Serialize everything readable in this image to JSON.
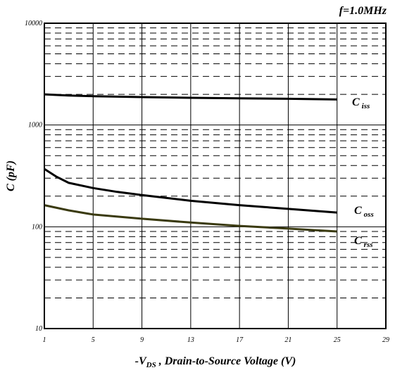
{
  "chart_data": {
    "type": "line",
    "annotation": "f=1.0MHz",
    "xlabel": {
      "prefix": "-V",
      "sub": "DS",
      "suffix": " , Drain-to-Source Voltage (V)"
    },
    "ylabel": "C (pF)",
    "xlim": [
      1,
      29
    ],
    "ylim": [
      10,
      10000
    ],
    "yscale": "log",
    "xticks": [
      1,
      5,
      9,
      13,
      17,
      21,
      25,
      29
    ],
    "yticks": [
      10,
      100,
      1000,
      10000
    ],
    "ytick_labels": [
      "10",
      "100",
      "1000",
      "10000"
    ],
    "grid": true,
    "series": [
      {
        "name": "C",
        "sub": "iss",
        "color": "#000000",
        "x": [
          1,
          3,
          5,
          9,
          13,
          17,
          21,
          25
        ],
        "y": [
          2000,
          1950,
          1920,
          1880,
          1850,
          1830,
          1810,
          1780
        ]
      },
      {
        "name": "C",
        "sub": "oss",
        "color": "#000000",
        "x": [
          1,
          2,
          3,
          5,
          7,
          9,
          13,
          17,
          21,
          25
        ],
        "y": [
          370,
          310,
          270,
          240,
          220,
          205,
          180,
          163,
          150,
          138
        ]
      },
      {
        "name": "C",
        "sub": "rss",
        "color": "#3a3a10",
        "x": [
          1,
          3,
          5,
          9,
          13,
          17,
          21,
          25
        ],
        "y": [
          163,
          145,
          132,
          120,
          110,
          102,
          96,
          90
        ]
      }
    ]
  }
}
